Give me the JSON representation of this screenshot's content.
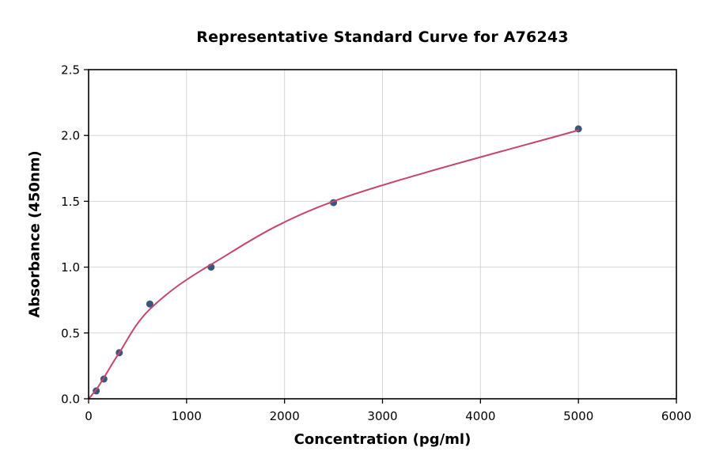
{
  "chart_data": {
    "type": "scatter",
    "title": "Representative Standard Curve for A76243",
    "xlabel": "Concentration (pg/ml)",
    "ylabel": "Absorbance (450nm)",
    "xlim": [
      0,
      6000
    ],
    "ylim": [
      0,
      2.5
    ],
    "x_ticks": [
      0,
      1000,
      2000,
      3000,
      4000,
      5000,
      6000
    ],
    "x_tick_labels": [
      "0",
      "1000",
      "2000",
      "3000",
      "4000",
      "5000",
      "6000"
    ],
    "y_ticks": [
      0,
      0.5,
      1.0,
      1.5,
      2.0,
      2.5
    ],
    "y_tick_labels": [
      "0.0",
      "0.5",
      "1.0",
      "1.5",
      "2.0",
      "2.5"
    ],
    "grid": true,
    "legend_position": "none",
    "colors": {
      "point": "#3a567c",
      "curve": "#c4476b",
      "grid": "#d5d5d5",
      "axis": "#000000"
    },
    "series": [
      {
        "name": "standard-points",
        "kind": "scatter",
        "color": "#3a567c",
        "points": [
          [
            78,
            0.06
          ],
          [
            156,
            0.15
          ],
          [
            313,
            0.35
          ],
          [
            625,
            0.72
          ],
          [
            1250,
            1.0
          ],
          [
            2500,
            1.49
          ],
          [
            5000,
            2.05
          ]
        ]
      },
      {
        "name": "fitted-curve",
        "kind": "line",
        "color": "#c4476b",
        "points": [
          [
            0,
            0.0
          ],
          [
            78,
            0.07
          ],
          [
            156,
            0.16
          ],
          [
            313,
            0.35
          ],
          [
            625,
            0.68
          ],
          [
            1250,
            1.02
          ],
          [
            2500,
            1.5
          ],
          [
            5000,
            2.04
          ]
        ]
      }
    ]
  }
}
